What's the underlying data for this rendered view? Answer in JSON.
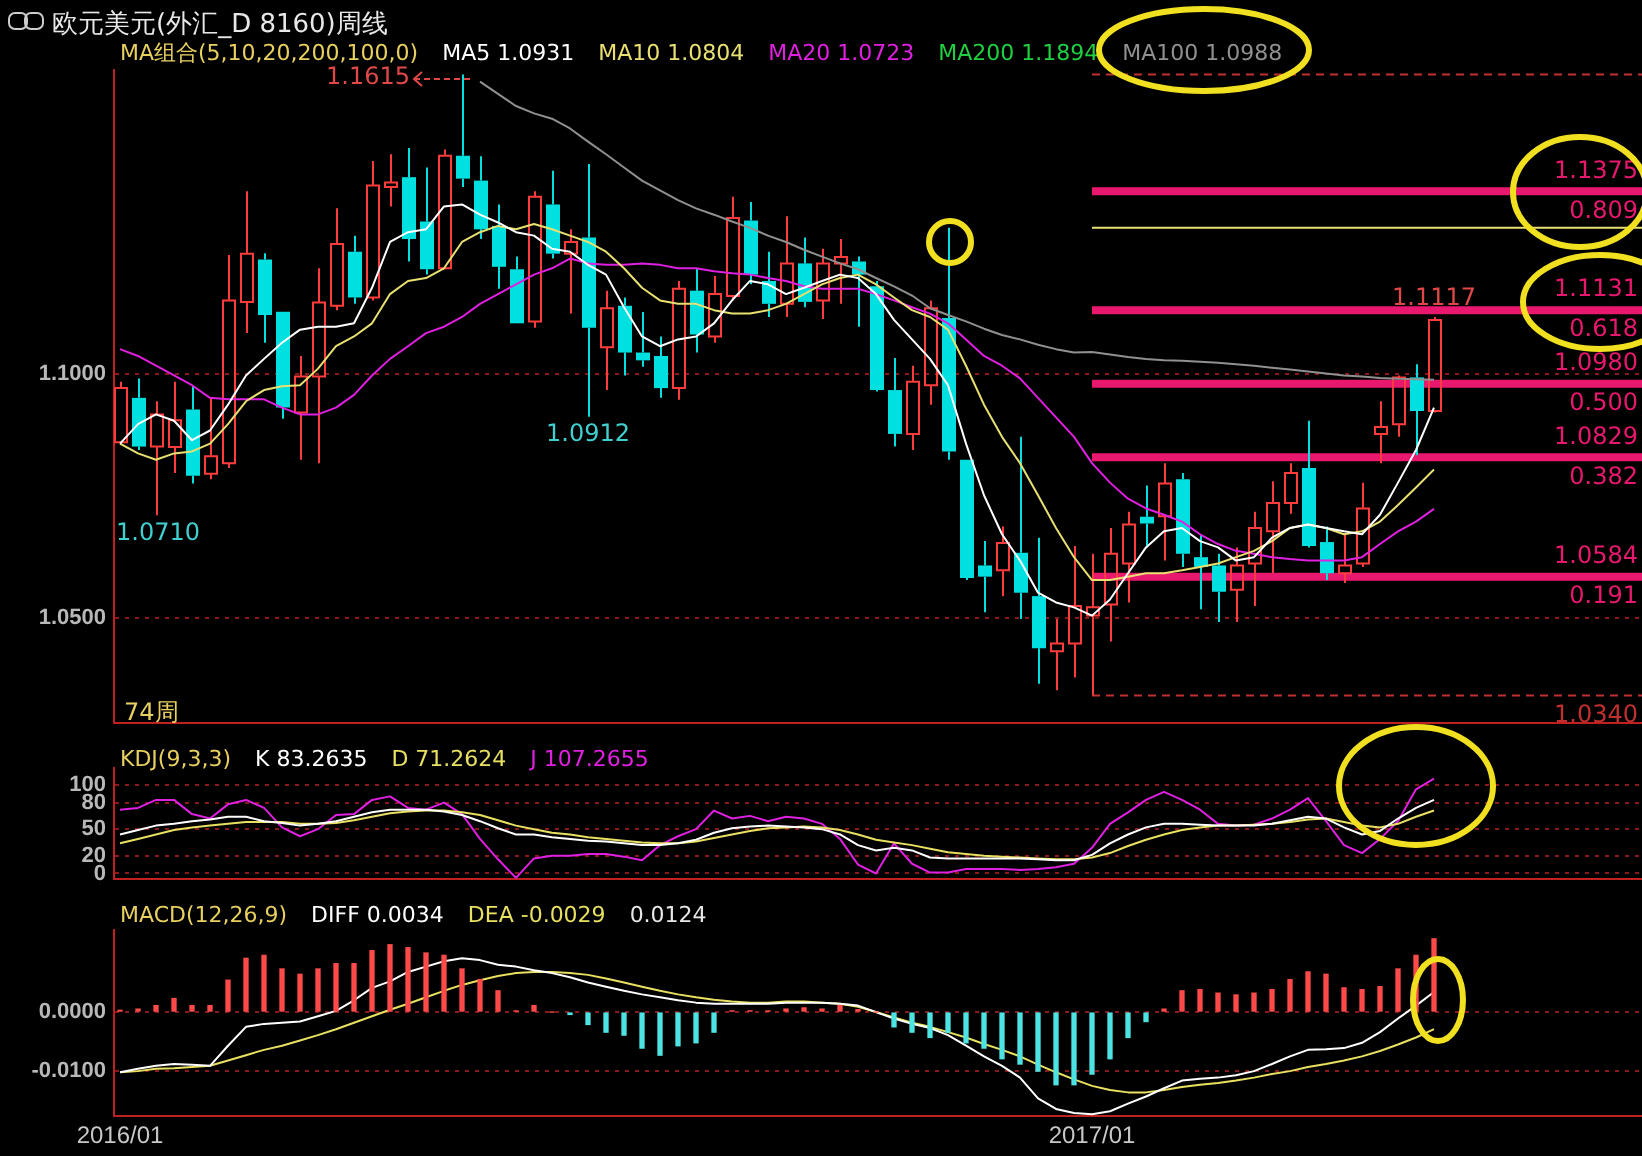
{
  "chart_data": [
    {
      "type": "candlestick",
      "title": "欧元美元(外汇_D 8160)周线",
      "legend_title": "MA组合(5,10,20,200,100,0)",
      "legend": "top",
      "tick_labels": "y",
      "grid": "y",
      "marker": "none",
      "categories": [
        "2016/01",
        null,
        null,
        null,
        null,
        null,
        null,
        null,
        null,
        null,
        null,
        null,
        null,
        null,
        null,
        null,
        null,
        null,
        null,
        null,
        null,
        null,
        null,
        null,
        null,
        null,
        null,
        null,
        null,
        null,
        null,
        null,
        null,
        null,
        null,
        null,
        null,
        null,
        null,
        null,
        null,
        null,
        null,
        null,
        null,
        null,
        null,
        null,
        null,
        null,
        null,
        null,
        null,
        null,
        "2017/01",
        null,
        null,
        null,
        null,
        null,
        null,
        null,
        null,
        null,
        null,
        null,
        null,
        null,
        null,
        null,
        null,
        null,
        null,
        null
      ],
      "ohlc": [
        [
          1.086,
          1.0984,
          1.0857,
          1.0971
        ],
        [
          1.0951,
          1.0991,
          1.0844,
          1.0851
        ],
        [
          1.0851,
          1.0944,
          1.071,
          1.0917
        ],
        [
          1.085,
          1.0984,
          1.0797,
          1.0905
        ],
        [
          1.0927,
          1.0975,
          1.0775,
          1.0791
        ],
        [
          1.0795,
          1.0951,
          1.0784,
          1.0831
        ],
        [
          1.0817,
          1.1244,
          1.0807,
          1.1151
        ],
        [
          1.1148,
          1.1375,
          1.1084,
          1.1247
        ],
        [
          1.1235,
          1.1248,
          1.1064,
          1.1121
        ],
        [
          1.1128,
          1.1128,
          1.0908,
          1.0931
        ],
        [
          1.0921,
          1.1037,
          1.0824,
          1.0995
        ],
        [
          1.0995,
          1.1217,
          1.0817,
          1.1147
        ],
        [
          1.114,
          1.134,
          1.1131,
          1.1267
        ],
        [
          1.1251,
          1.1284,
          1.1144,
          1.1157
        ],
        [
          1.1157,
          1.1437,
          1.1151,
          1.1387
        ],
        [
          1.1384,
          1.1451,
          1.1344,
          1.1393
        ],
        [
          1.1404,
          1.1464,
          1.1231,
          1.1277
        ],
        [
          1.1313,
          1.1424,
          1.1204,
          1.1215
        ],
        [
          1.1217,
          1.1461,
          1.1215,
          1.1448
        ],
        [
          1.1448,
          1.1615,
          1.1384,
          1.1401
        ],
        [
          1.1397,
          1.1447,
          1.1277,
          1.1297
        ],
        [
          1.1304,
          1.1348,
          1.1175,
          1.122
        ],
        [
          1.1215,
          1.1241,
          1.1104,
          1.1104
        ],
        [
          1.1108,
          1.1375,
          1.1095,
          1.1364
        ],
        [
          1.1348,
          1.1417,
          1.1237,
          1.1247
        ],
        [
          1.1247,
          1.1297,
          1.1124,
          1.1271
        ],
        [
          1.128,
          1.1431,
          1.0912,
          1.1095
        ],
        [
          1.1055,
          1.1171,
          1.0967,
          1.1135
        ],
        [
          1.114,
          1.1157,
          1.0997,
          1.1044
        ],
        [
          1.1044,
          1.1127,
          1.1015,
          1.1028
        ],
        [
          1.1037,
          1.1077,
          1.0951,
          1.0971
        ],
        [
          1.0971,
          1.1191,
          1.0947,
          1.1175
        ],
        [
          1.1171,
          1.1217,
          1.1044,
          1.1081
        ],
        [
          1.1077,
          1.1201,
          1.1064,
          1.1164
        ],
        [
          1.116,
          1.1364,
          1.1151,
          1.132
        ],
        [
          1.1315,
          1.1353,
          1.1184,
          1.1204
        ],
        [
          1.1191,
          1.1251,
          1.1117,
          1.1144
        ],
        [
          1.1144,
          1.1324,
          1.1117,
          1.1227
        ],
        [
          1.1227,
          1.128,
          1.1137,
          1.1148
        ],
        [
          1.1151,
          1.1257,
          1.1113,
          1.1227
        ],
        [
          1.1227,
          1.1277,
          1.1144,
          1.124
        ],
        [
          1.1231,
          1.1241,
          1.1097,
          1.1204
        ],
        [
          1.118,
          1.1191,
          1.0964,
          1.0967
        ],
        [
          1.0967,
          1.1033,
          1.0851,
          1.0877
        ],
        [
          1.0877,
          1.1017,
          1.0844,
          1.0984
        ],
        [
          1.0977,
          1.1151,
          1.0937,
          1.1135
        ],
        [
          1.1115,
          1.13,
          1.0824,
          1.0841
        ],
        [
          1.0824,
          1.0824,
          1.0577,
          1.0581
        ],
        [
          1.0607,
          1.0657,
          1.0511,
          1.0584
        ],
        [
          1.0597,
          1.0687,
          1.0544,
          1.0653
        ],
        [
          1.0633,
          1.0871,
          1.0497,
          1.0551
        ],
        [
          1.0544,
          1.0664,
          1.0364,
          1.0437
        ],
        [
          1.0431,
          1.0497,
          1.0351,
          1.0447
        ],
        [
          1.0447,
          1.0647,
          1.0377,
          1.0524
        ],
        [
          1.0504,
          1.0631,
          1.034,
          1.0521
        ],
        [
          1.0527,
          1.0684,
          1.0451,
          1.0631
        ],
        [
          1.0611,
          1.0717,
          1.0531,
          1.0691
        ],
        [
          1.0707,
          1.0771,
          1.0644,
          1.0693
        ],
        [
          1.0708,
          1.0817,
          1.0617,
          1.0775
        ],
        [
          1.0784,
          1.0797,
          1.0604,
          1.0631
        ],
        [
          1.0624,
          1.0671,
          1.0517,
          1.0604
        ],
        [
          1.0607,
          1.0631,
          1.0491,
          1.0553
        ],
        [
          1.0557,
          1.0644,
          1.0491,
          1.0607
        ],
        [
          1.0611,
          1.0717,
          1.0524,
          1.0684
        ],
        [
          1.0677,
          1.078,
          1.0591,
          1.0735
        ],
        [
          1.0735,
          1.0817,
          1.0713,
          1.0797
        ],
        [
          1.0807,
          1.0904,
          1.0644,
          1.0647
        ],
        [
          1.0655,
          1.0687,
          1.0577,
          1.0591
        ],
        [
          1.0591,
          1.0671,
          1.0571,
          1.0607
        ],
        [
          1.0611,
          1.0777,
          1.0604,
          1.0724
        ],
        [
          1.0877,
          1.0944,
          1.0817,
          1.0891
        ],
        [
          1.0897,
          1.0997,
          1.0871,
          1.0993
        ],
        [
          1.0993,
          1.102,
          1.0833,
          1.0924
        ],
        [
          1.0924,
          1.1117,
          1.0921,
          1.1111
        ]
      ],
      "colors": [
        "#ff3c3c",
        "#00e0e0",
        "#ff3c3c",
        "#ff3c3c",
        "#00e0e0",
        "#ff3c3c",
        "#ff3c3c",
        "#ff3c3c",
        "#00e0e0",
        "#00e0e0",
        "#ff3c3c",
        "#ff3c3c",
        "#ff3c3c",
        "#00e0e0",
        "#ff3c3c",
        "#ff3c3c",
        "#00e0e0",
        "#00e0e0",
        "#ff3c3c",
        "#00e0e0",
        "#00e0e0",
        "#00e0e0",
        "#00e0e0",
        "#ff3c3c",
        "#00e0e0",
        "#ff3c3c",
        "#00e0e0",
        "#ff3c3c",
        "#00e0e0",
        "#00e0e0",
        "#00e0e0",
        "#ff3c3c",
        "#00e0e0",
        "#ff3c3c",
        "#ff3c3c",
        "#00e0e0",
        "#00e0e0",
        "#ff3c3c",
        "#00e0e0",
        "#ff3c3c",
        "#ff3c3c",
        "#00e0e0",
        "#00e0e0",
        "#00e0e0",
        "#ff3c3c",
        "#ff3c3c",
        "#00e0e0",
        "#00e0e0",
        "#00e0e0",
        "#ff3c3c",
        "#00e0e0",
        "#00e0e0",
        "#ff3c3c",
        "#ff3c3c",
        "#ff3c3c",
        "#ff3c3c",
        "#ff3c3c",
        "#00e0e0",
        "#ff3c3c",
        "#00e0e0",
        "#00e0e0",
        "#00e0e0",
        "#ff3c3c",
        "#ff3c3c",
        "#ff3c3c",
        "#ff3c3c",
        "#00e0e0",
        "#00e0e0",
        "#ff3c3c",
        "#ff3c3c",
        "#ff3c3c",
        "#ff3c3c",
        "#00e0e0",
        "#ff3c3c"
      ],
      "series": [
        {
          "name": "MA5 1.0931",
          "type": "line",
          "color": "#ffffff",
          "values": [
            1.0857,
            1.0897,
            1.0917,
            1.0904,
            1.0864,
            1.0884,
            1.0937,
            1.0997,
            1.1031,
            1.1064,
            1.1091,
            1.1097,
            1.1097,
            1.1104,
            1.1177,
            1.1271,
            1.1291,
            1.1297,
            1.1344,
            1.1348,
            1.1327,
            1.1311,
            1.1291,
            1.1284,
            1.1257,
            1.1251,
            1.1224,
            1.1204,
            1.1137,
            1.1077,
            1.1057,
            1.1071,
            1.1077,
            1.1104,
            1.1151,
            1.1191,
            1.1184,
            1.1164,
            1.1177,
            1.1191,
            1.1204,
            1.1197,
            1.1164,
            1.1111,
            1.1071,
            1.1031,
            1.0977,
            1.0857,
            1.0751,
            1.0671,
            1.0617,
            1.0551,
            1.0531,
            1.0521,
            1.0504,
            1.0537,
            1.0591,
            1.0644,
            1.0677,
            1.0684,
            1.0657,
            1.0644,
            1.0617,
            1.0624,
            1.0664,
            1.0684,
            1.0691,
            1.0684,
            1.0677,
            1.0671,
            1.0711,
            1.0777,
            1.0844,
            1.0931
          ]
        },
        {
          "name": "MA10 1.0804",
          "type": "line",
          "color": "#e8e070",
          "values": [
            1.0857,
            1.0837,
            1.0824,
            1.0837,
            1.0841,
            1.0857,
            1.0897,
            1.0944,
            1.0967,
            1.0975,
            1.0977,
            1.1011,
            1.1057,
            1.1077,
            1.1104,
            1.1164,
            1.1191,
            1.1197,
            1.1217,
            1.1271,
            1.1291,
            1.1304,
            1.1297,
            1.1308,
            1.1297,
            1.1284,
            1.1271,
            1.1251,
            1.1217,
            1.1177,
            1.1151,
            1.1144,
            1.1144,
            1.1131,
            1.1124,
            1.1124,
            1.1131,
            1.1144,
            1.1164,
            1.1184,
            1.1197,
            1.1204,
            1.1184,
            1.1157,
            1.1131,
            1.1117,
            1.1091,
            1.1017,
            1.0937,
            1.0871,
            1.0817,
            1.0751,
            1.0684,
            1.0624,
            1.0577,
            1.0577,
            1.0584,
            1.0591,
            1.0591,
            1.0597,
            1.0604,
            1.0611,
            1.0624,
            1.0637,
            1.0657,
            1.0684,
            1.0691,
            1.0684,
            1.0671,
            1.0677,
            1.0697,
            1.0731,
            1.0767,
            1.0804
          ]
        },
        {
          "name": "MA20 1.0723",
          "type": "line",
          "color": "#e020e0",
          "values": [
            1.1051,
            1.1037,
            1.1017,
            1.0997,
            1.0977,
            1.0951,
            1.0948,
            1.0948,
            1.0948,
            1.0931,
            1.0917,
            1.0917,
            1.0931,
            1.0957,
            1.0997,
            1.1031,
            1.1057,
            1.1084,
            1.1097,
            1.1117,
            1.1144,
            1.1164,
            1.1184,
            1.1204,
            1.1217,
            1.1237,
            1.1227,
            1.1224,
            1.1224,
            1.1227,
            1.1224,
            1.1217,
            1.1217,
            1.1211,
            1.1207,
            1.1204,
            1.1197,
            1.1191,
            1.118,
            1.1175,
            1.1175,
            1.1175,
            1.1164,
            1.1151,
            1.1137,
            1.1124,
            1.1104,
            1.1071,
            1.1037,
            1.1017,
            1.0991,
            1.0951,
            1.0911,
            1.0871,
            1.0817,
            1.0777,
            1.0744,
            1.0724,
            1.0711,
            1.0697,
            1.0671,
            1.0651,
            1.0637,
            1.0631,
            1.0624,
            1.062,
            1.0617,
            1.0617,
            1.0617,
            1.0624,
            1.0651,
            1.0677,
            1.0697,
            1.0723
          ]
        },
        {
          "name": "MA200 1.1894",
          "type": "line",
          "color": "#20d040",
          "values": [
            null,
            null,
            null,
            null,
            null,
            null,
            null,
            null,
            null,
            null,
            null,
            null,
            null,
            null,
            null,
            null,
            null,
            null,
            null,
            null,
            null,
            null,
            null,
            null,
            null,
            null,
            null,
            null,
            null,
            null,
            null,
            null,
            null,
            null,
            null,
            null,
            null,
            null,
            null,
            null,
            null,
            null,
            null,
            null,
            null,
            null,
            null,
            null,
            null,
            null,
            null,
            null,
            null,
            null,
            null,
            null,
            null,
            null,
            null,
            null,
            null,
            null,
            null,
            null,
            null,
            null,
            null,
            null,
            null,
            null,
            null,
            null,
            null,
            null
          ]
        },
        {
          "name": "MA100 1.0988",
          "type": "line",
          "color": "#909090",
          "values": [
            null,
            null,
            null,
            null,
            null,
            null,
            null,
            null,
            null,
            null,
            null,
            null,
            null,
            null,
            null,
            null,
            null,
            null,
            null,
            null,
            1.16,
            1.1575,
            1.155,
            1.1535,
            1.1524,
            1.1504,
            1.1477,
            1.1451,
            1.1424,
            1.1397,
            1.1377,
            1.1357,
            1.134,
            1.1327,
            1.1313,
            1.13,
            1.1284,
            1.1271,
            1.1255,
            1.1241,
            1.1227,
            1.1215,
            1.1197,
            1.118,
            1.1161,
            1.1135,
            1.1121,
            1.1108,
            1.1093,
            1.108,
            1.1071,
            1.106,
            1.1051,
            1.1044,
            1.1045,
            1.104,
            1.1035,
            1.1031,
            1.1028,
            1.1027,
            1.1025,
            1.1023,
            1.102,
            1.1017,
            1.1013,
            1.1009,
            1.1005,
            1.1001,
            1.0997,
            1.0995,
            1.0992,
            1.099,
            1.0989,
            1.0988
          ]
        }
      ],
      "ylim": [
        1.0284,
        1.1624
      ],
      "yticks": [
        {
          "value": 1.1,
          "label": "1.1000"
        },
        {
          "value": 1.05,
          "label": "1.0500"
        }
      ],
      "ref_lines": [
        {
          "axis": "y",
          "value": 1.1375,
          "label": "1.1375",
          "color": "#e8186e"
        },
        {
          "axis": "y",
          "value": 1.1131,
          "label": "1.1131",
          "color": "#e8186e"
        },
        {
          "axis": "y",
          "value": 1.098,
          "label": "1.0980",
          "color": "#e8186e"
        },
        {
          "axis": "y",
          "value": 1.0829,
          "label": "1.0829",
          "color": "#e8186e"
        },
        {
          "axis": "y",
          "value": 1.0584,
          "label": "1.0584",
          "color": "#e8186e"
        },
        {
          "axis": "y",
          "value": 1.13,
          "color": "#e8e070"
        },
        {
          "axis": "y",
          "value": 1.1615,
          "color": "#c03030",
          "line_style": "dashed"
        },
        {
          "axis": "y",
          "value": 1.034,
          "color": "#c03030",
          "line_style": "dashed"
        }
      ],
      "annotations": [
        "1.1615",
        {
          "text": "0.809",
          "y": 1.1375
        },
        {
          "text": "0.618",
          "y": 1.1131
        },
        {
          "text": "0.500",
          "y": 1.098
        },
        {
          "text": "0.382",
          "y": 1.0829
        },
        {
          "text": "0.191",
          "y": 1.0584
        },
        {
          "text": "1.0710",
          "y": 1.071
        },
        {
          "text": "1.0912",
          "y": 1.0912
        },
        {
          "text": "1.0340",
          "y": 1.034
        },
        {
          "text": "1.1117",
          "y": 1.1117
        },
        "74周"
      ]
    },
    {
      "type": "line",
      "legend_title": "KDJ(9,3,3)",
      "legend": "top left",
      "tick_labels": "y",
      "grid": "y",
      "marker": "none",
      "categories": [
        "2016/01",
        null,
        null,
        null,
        null,
        null,
        null,
        null,
        null,
        null,
        null,
        null,
        null,
        null,
        null,
        null,
        null,
        null,
        null,
        null,
        null,
        null,
        null,
        null,
        null,
        null,
        null,
        null,
        null,
        null,
        null,
        null,
        null,
        null,
        null,
        null,
        null,
        null,
        null,
        null,
        null,
        null,
        null,
        null,
        null,
        null,
        null,
        null,
        null,
        null,
        null,
        null,
        null,
        null,
        "2017/01",
        null,
        null,
        null,
        null,
        null,
        null,
        null,
        null,
        null,
        null,
        null,
        null,
        null,
        null,
        null,
        null,
        null,
        null,
        null
      ],
      "series": [
        {
          "name": "K 83.2635",
          "color": "#ffffff",
          "values": [
            44,
            49,
            54,
            56,
            59,
            61,
            64,
            64,
            59,
            57,
            54,
            56,
            59,
            64,
            69,
            72,
            72,
            72,
            70,
            66,
            59,
            51,
            44,
            44,
            41,
            39,
            37,
            36,
            34,
            32,
            32,
            34,
            38,
            46,
            51,
            53,
            54,
            53,
            52,
            50,
            44,
            32,
            26,
            29,
            26,
            18,
            17,
            17,
            17,
            17,
            17,
            16,
            15,
            15,
            21,
            34,
            44,
            52,
            56,
            56,
            55,
            54,
            54,
            54,
            56,
            60,
            64,
            62,
            52,
            44,
            48,
            62,
            74,
            83
          ]
        },
        {
          "name": "D 71.2624",
          "color": "#e8e060",
          "values": [
            34,
            39,
            44,
            49,
            52,
            54,
            56,
            58,
            58,
            58,
            56,
            56,
            57,
            60,
            64,
            68,
            70,
            71,
            71,
            69,
            66,
            60,
            54,
            50,
            46,
            44,
            41,
            39,
            37,
            35,
            34,
            34,
            36,
            40,
            44,
            48,
            51,
            52,
            53,
            52,
            49,
            44,
            38,
            35,
            32,
            28,
            24,
            22,
            20,
            19,
            18,
            17,
            16,
            16,
            18,
            23,
            31,
            38,
            44,
            49,
            52,
            54,
            54,
            55,
            56,
            58,
            61,
            62,
            58,
            54,
            52,
            56,
            64,
            71
          ]
        },
        {
          "name": "J 107.2655",
          "color": "#e020e0",
          "values": [
            72,
            74,
            83,
            83,
            67,
            62,
            78,
            83,
            74,
            52,
            42,
            50,
            66,
            67,
            83,
            87,
            74,
            72,
            80,
            67,
            39,
            16,
            -5,
            17,
            20,
            20,
            22,
            22,
            19,
            15,
            32,
            42,
            50,
            71,
            62,
            65,
            59,
            64,
            62,
            56,
            39,
            10,
            0,
            34,
            11,
            1,
            1,
            5,
            5,
            5,
            4,
            5,
            7,
            11,
            29,
            56,
            69,
            83,
            92,
            83,
            72,
            56,
            54,
            55,
            62,
            72,
            85,
            59,
            32,
            23,
            39,
            59,
            95,
            107
          ]
        }
      ],
      "ylim": [
        -6,
        119
      ],
      "yticks": [
        0,
        20,
        50,
        80,
        100
      ]
    },
    {
      "type": "bar",
      "legend_title": "MACD(12,26,9)",
      "legend": "top left",
      "grid": "y",
      "marker": "none",
      "categories": [
        "2016/01",
        null,
        null,
        null,
        null,
        null,
        null,
        null,
        null,
        null,
        null,
        null,
        null,
        null,
        null,
        null,
        null,
        null,
        null,
        null,
        null,
        null,
        null,
        null,
        null,
        null,
        null,
        null,
        null,
        null,
        null,
        null,
        null,
        null,
        null,
        null,
        null,
        null,
        null,
        null,
        null,
        null,
        null,
        null,
        null,
        null,
        null,
        null,
        null,
        null,
        null,
        null,
        null,
        null,
        "2017/01",
        null,
        null,
        null,
        null,
        null,
        null,
        null,
        null,
        null,
        null,
        null,
        null,
        null,
        null,
        null,
        null,
        null,
        null,
        null
      ],
      "series": [
        {
          "type": "bar",
          "colors": [
            "#ff4a4a",
            "#ff4a4a",
            "#ff4a4a",
            "#ff4a4a",
            "#ff4a4a",
            "#ff4a4a",
            "#ff4a4a",
            "#ff4a4a",
            "#ff4a4a",
            "#ff4a4a",
            "#ff4a4a",
            "#ff4a4a",
            "#ff4a4a",
            "#ff4a4a",
            "#ff4a4a",
            "#ff4a4a",
            "#ff4a4a",
            "#ff4a4a",
            "#ff4a4a",
            "#ff4a4a",
            "#ff4a4a",
            "#ff4a4a",
            "#ff4a4a",
            "#ff4a4a",
            "#ff4a4a",
            "#4de3e3",
            "#4de3e3",
            "#4de3e3",
            "#4de3e3",
            "#4de3e3",
            "#4de3e3",
            "#4de3e3",
            "#4de3e3",
            "#4de3e3",
            "#ff4a4a",
            "#ff4a4a",
            "#ff4a4a",
            "#ff4a4a",
            "#ff4a4a",
            "#ff4a4a",
            "#ff4a4a",
            "#ff4a4a",
            "#ff4a4a",
            "#4de3e3",
            "#4de3e3",
            "#4de3e3",
            "#4de3e3",
            "#4de3e3",
            "#4de3e3",
            "#4de3e3",
            "#4de3e3",
            "#4de3e3",
            "#4de3e3",
            "#4de3e3",
            "#4de3e3",
            "#4de3e3",
            "#4de3e3",
            "#4de3e3",
            "#ff4a4a",
            "#ff4a4a",
            "#ff4a4a",
            "#ff4a4a",
            "#ff4a4a",
            "#ff4a4a",
            "#ff4a4a",
            "#ff4a4a",
            "#ff4a4a",
            "#ff4a4a",
            "#ff4a4a",
            "#ff4a4a",
            "#ff4a4a",
            "#ff4a4a",
            "#ff4a4a",
            "#ff4a4a"
          ],
          "values": [
            0.0003,
            0.0005,
            0.0011,
            0.0023,
            0.0011,
            0.0011,
            0.0054,
            0.0091,
            0.0096,
            0.0073,
            0.0064,
            0.0073,
            0.0082,
            0.0082,
            0.0104,
            0.0114,
            0.0109,
            0.01,
            0.0096,
            0.0073,
            0.0055,
            0.0036,
            0.0002,
            0.0011,
            0,
            -0.0004,
            -0.0021,
            -0.0034,
            -0.0039,
            -0.0061,
            -0.0073,
            -0.0057,
            -0.0052,
            -0.0034,
            0.0002,
            0.0002,
            0.0002,
            0.0005,
            0.0007,
            0.0005,
            0.0011,
            0.0004,
            0,
            -0.0025,
            -0.0034,
            -0.0043,
            -0.0034,
            -0.0052,
            -0.0061,
            -0.0079,
            -0.0088,
            -0.01,
            -0.0123,
            -0.0123,
            -0.0105,
            -0.0079,
            -0.0043,
            -0.0016,
            0.0005,
            0.0036,
            0.0038,
            0.0032,
            0.0029,
            0.0032,
            0.0038,
            0.0055,
            0.0068,
            0.0064,
            0.0041,
            0.0038,
            0.0043,
            0.0073,
            0.0096,
            0.0124
          ]
        },
        {
          "name": "DIFF 0.0034",
          "type": "line",
          "color": "#ffffff",
          "values": [
            -0.0102,
            -0.0096,
            -0.0091,
            -0.0088,
            -0.0089,
            -0.0091,
            -0.0057,
            -0.0025,
            -0.002,
            -0.0018,
            -0.0016,
            -0.0007,
            0.0002,
            0.002,
            0.0041,
            0.0052,
            0.0068,
            0.0077,
            0.0086,
            0.0091,
            0.0088,
            0.008,
            0.0077,
            0.0071,
            0.0066,
            0.0059,
            0.005,
            0.0043,
            0.0036,
            0.003,
            0.0025,
            0.002,
            0.0016,
            0.0014,
            0.0014,
            0.0014,
            0.0014,
            0.0016,
            0.0016,
            0.0016,
            0.0014,
            0.0011,
            0,
            -0.0011,
            -0.002,
            -0.0027,
            -0.0039,
            -0.0057,
            -0.0075,
            -0.0091,
            -0.0111,
            -0.0146,
            -0.0164,
            -0.0171,
            -0.0173,
            -0.0168,
            -0.0155,
            -0.0143,
            -0.0129,
            -0.0116,
            -0.0113,
            -0.0111,
            -0.0107,
            -0.01,
            -0.0088,
            -0.0075,
            -0.0064,
            -0.0063,
            -0.0061,
            -0.0052,
            -0.0034,
            -0.0011,
            0.0011,
            0.0034
          ]
        },
        {
          "name": "DEA -0.0029",
          "type": "line",
          "color": "#e8e060",
          "values": [
            -0.0102,
            -0.01,
            -0.0096,
            -0.0095,
            -0.0093,
            -0.0091,
            -0.0082,
            -0.0073,
            -0.0064,
            -0.0057,
            -0.0048,
            -0.0039,
            -0.0029,
            -0.0018,
            -0.0007,
            0.0004,
            0.0014,
            0.0025,
            0.0036,
            0.0046,
            0.0054,
            0.0061,
            0.0066,
            0.0068,
            0.0068,
            0.0066,
            0.0063,
            0.0057,
            0.005,
            0.0043,
            0.0036,
            0.003,
            0.0025,
            0.0021,
            0.0018,
            0.0016,
            0.0016,
            0.0018,
            0.0018,
            0.0016,
            0.0014,
            0.0009,
            0,
            -0.0009,
            -0.0018,
            -0.0025,
            -0.0034,
            -0.0043,
            -0.0054,
            -0.0064,
            -0.0075,
            -0.0089,
            -0.0102,
            -0.0114,
            -0.0125,
            -0.0132,
            -0.0136,
            -0.0136,
            -0.0132,
            -0.0127,
            -0.0123,
            -0.012,
            -0.0116,
            -0.0111,
            -0.0105,
            -0.01,
            -0.0093,
            -0.0088,
            -0.0082,
            -0.0075,
            -0.0066,
            -0.0055,
            -0.0043,
            -0.0029
          ]
        }
      ],
      "ylim": [
        -0.0176,
        0.0139
      ],
      "yticks": [
        {
          "value": 0,
          "label": "0.0000"
        },
        {
          "value": -0.01,
          "label": "-0.0100"
        }
      ],
      "annotations": [
        "0.0124"
      ]
    }
  ]
}
